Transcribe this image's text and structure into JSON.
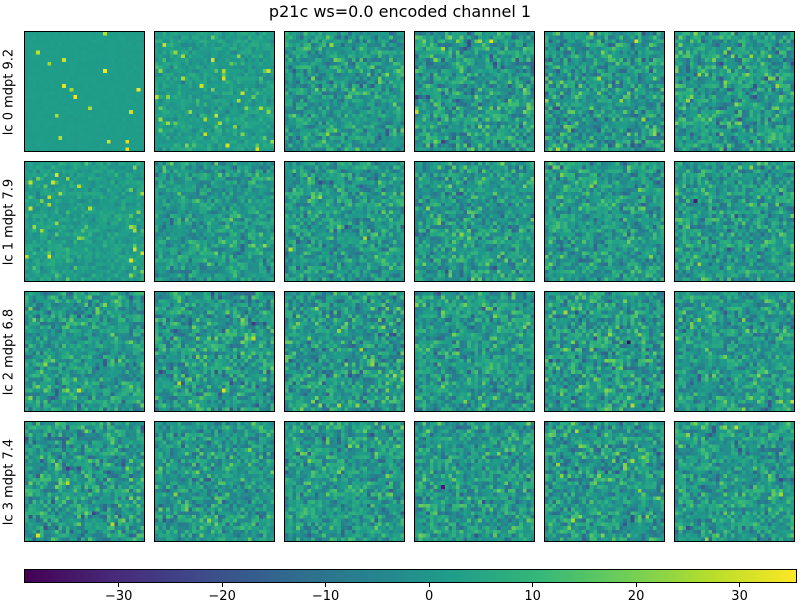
{
  "chart_data": {
    "type": "heatmap",
    "title": "p21c ws=0.0 encoded channel 1",
    "row_labels": [
      "lc 0 mdpt 9.2",
      "lc 1 mdpt 7.9",
      "lc 2 mdpt 6.8",
      "lc 3 mdpt 7.4"
    ],
    "n_rows": 4,
    "n_cols": 6,
    "grid_size": 32,
    "colormap": "viridis",
    "colorbar": {
      "vmin": -39,
      "vmax": 35.5,
      "orientation": "horizontal",
      "ticks": [
        -30,
        -20,
        -10,
        0,
        10,
        20,
        30
      ],
      "tick_labels": [
        "−30",
        "−20",
        "−10",
        "0",
        "10",
        "20",
        "30"
      ]
    },
    "panel_spread": [
      [
        0,
        3,
        7,
        8,
        8,
        8
      ],
      [
        3,
        6,
        7,
        7,
        7,
        7
      ],
      [
        7,
        8,
        8,
        7,
        8,
        7
      ],
      [
        8,
        7,
        7,
        7,
        8,
        7
      ]
    ]
  }
}
